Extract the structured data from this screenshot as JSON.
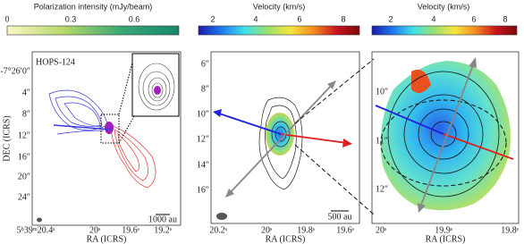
{
  "panels": [
    {
      "colorbar": {
        "label": "Polarization intensity (mJy/beam)",
        "ticks": [
          "0",
          "0.3",
          "0.6"
        ],
        "colors": [
          "#fbf7c8",
          "#b5d86a",
          "#3aa874",
          "#16876e"
        ]
      },
      "source": "HOPS-124",
      "yticks": [
        "-7°26′0″",
        "4″",
        "8″",
        "12″",
        "16″",
        "20″",
        "24″"
      ],
      "xticks": [
        "5ʰ39ᵐ20.4ˢ",
        "20ˢ",
        "19.6ˢ",
        "19.2ˢ"
      ],
      "ylabel": "DEC (ICRS)",
      "xlabel": "RA (ICRS)",
      "scalebar": "1000 au"
    },
    {
      "colorbar": {
        "label": "Velocity (km/s)",
        "ticks": [
          "2",
          "4",
          "6",
          "8"
        ],
        "colors": [
          "#1a1aa8",
          "#1f78f0",
          "#40e0e8",
          "#9ae070",
          "#f5e640",
          "#f58a20",
          "#c8141e",
          "#7a0a0a"
        ]
      },
      "yticks": [
        "6″",
        "8″",
        "10″",
        "12″",
        "14″",
        "16″"
      ],
      "xticks": [
        "20.2ˢ",
        "20ˢ",
        "19.8ˢ",
        "19.6ˢ"
      ],
      "xlabel": "RA (ICRS)",
      "scalebar": "500 au"
    },
    {
      "colorbar": {
        "label": "Velocity (km/s)",
        "ticks": [
          "2",
          "4",
          "6",
          "8"
        ],
        "colors": [
          "#1a1aa8",
          "#1f78f0",
          "#40e0e8",
          "#9ae070",
          "#f5e640",
          "#f58a20",
          "#c8141e",
          "#7a0a0a"
        ]
      },
      "yticks": [
        "10″",
        "11″",
        "12″"
      ],
      "xticks": [
        "20ˢ",
        "19.9ˢ",
        "19.8ˢ"
      ],
      "xlabel": "RA (ICRS)"
    }
  ]
}
